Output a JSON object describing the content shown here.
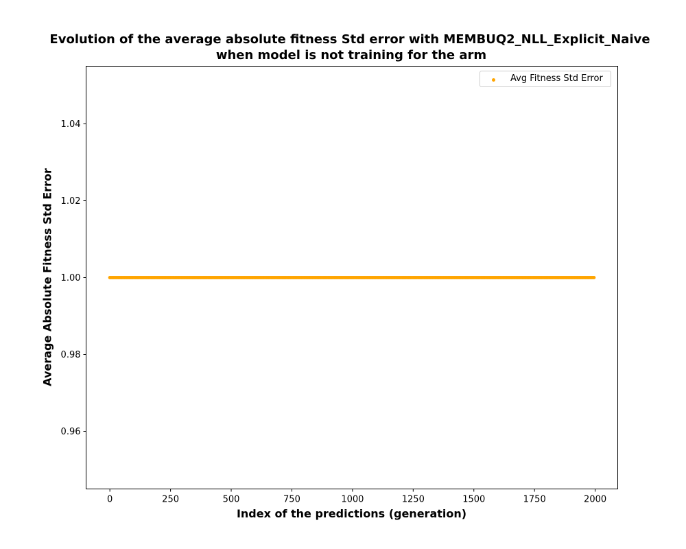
{
  "chart_data": {
    "type": "scatter",
    "title_line1": "Evolution of the average absolute fitness Std error with MEMBUQ2_NLL_Explicit_Naive",
    "title_line2": "when model is not training for the arm",
    "xlabel": "Index of the predictions (generation)",
    "ylabel": "Average Absolute Fitness Std Error",
    "xlim": [
      -98,
      2093
    ],
    "ylim": [
      0.945,
      1.055
    ],
    "xticks": [
      "0",
      "250",
      "500",
      "750",
      "1000",
      "1250",
      "1500",
      "1750",
      "2000"
    ],
    "xtick_values": [
      0,
      250,
      500,
      750,
      1000,
      1250,
      1500,
      1750,
      2000
    ],
    "yticks": [
      "0.96",
      "0.98",
      "1.00",
      "1.02",
      "1.04"
    ],
    "ytick_values": [
      0.96,
      0.98,
      1.0,
      1.02,
      1.04
    ],
    "grid": false,
    "legend_position": "top-right",
    "series": [
      {
        "name": "Avg Fitness Std Error",
        "color": "#ffa500",
        "x_start": 0,
        "x_end": 1995,
        "y_constant": 1.0
      }
    ]
  }
}
